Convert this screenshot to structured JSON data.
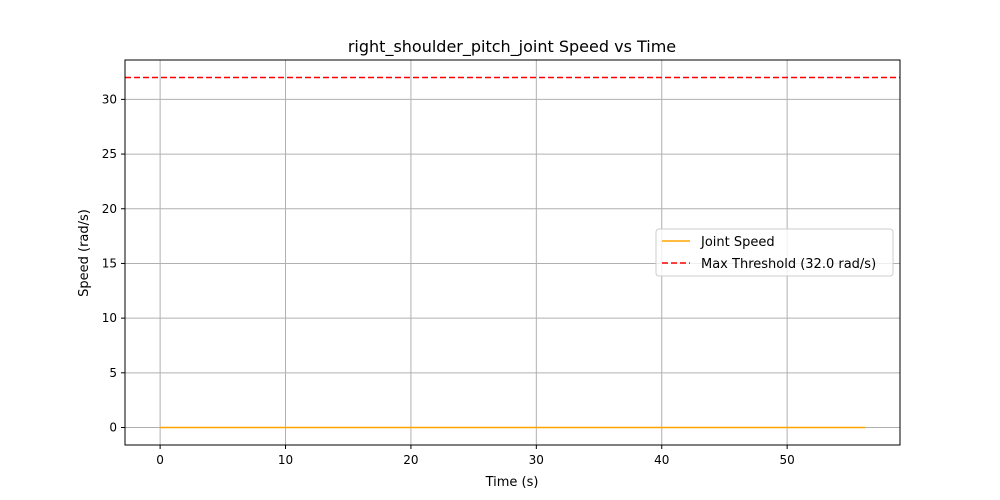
{
  "chart_data": {
    "type": "line",
    "title": "right_shoulder_pitch_joint Speed vs Time",
    "xlabel": "Time (s)",
    "ylabel": "Speed (rad/s)",
    "xlim": [
      -2.8,
      59
    ],
    "ylim": [
      -1.6,
      33.6
    ],
    "xticks": [
      0,
      10,
      20,
      30,
      40,
      50
    ],
    "yticks": [
      0,
      5,
      10,
      15,
      20,
      25,
      30
    ],
    "grid": true,
    "legend_position": "center-right",
    "series": [
      {
        "name": "Joint Speed",
        "color": "#ffa500",
        "style": "solid",
        "x": [
          0,
          56.2
        ],
        "y": [
          0,
          0
        ]
      }
    ],
    "reference_lines": [
      {
        "name": "Max Threshold (32.0 rad/s)",
        "color": "#ff0000",
        "style": "dashed",
        "y": 32.0
      }
    ]
  }
}
